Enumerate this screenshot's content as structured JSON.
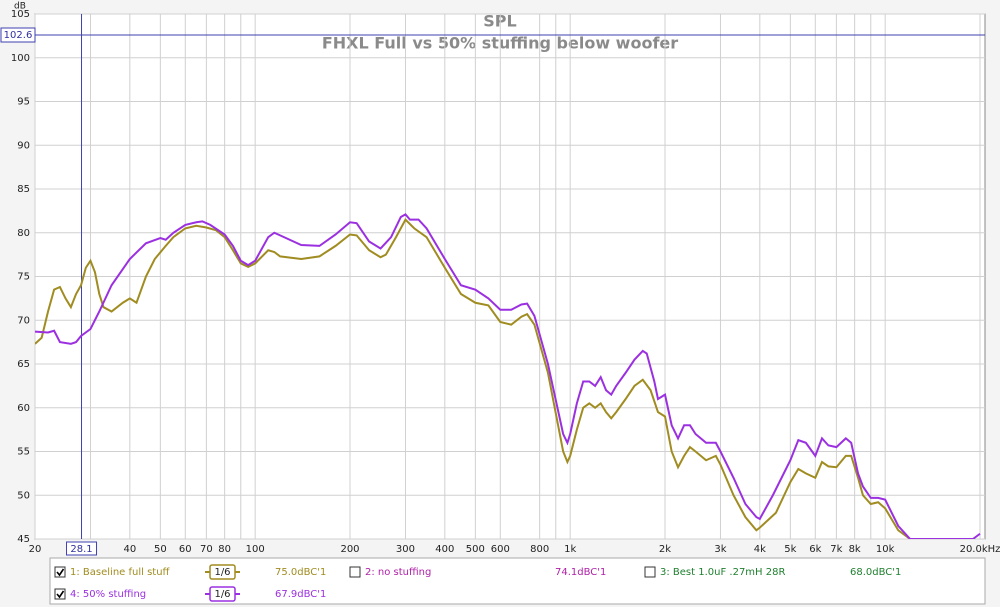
{
  "chart_data": {
    "type": "line",
    "title": "SPL",
    "subtitle": "FHXL Full vs 50% stuffing below woofer",
    "y_label": "dB",
    "xscale": "log",
    "grid": true,
    "xlim": [
      20,
      20000
    ],
    "ylim": [
      45,
      105
    ],
    "xticks": [
      20,
      30,
      40,
      50,
      60,
      70,
      80,
      100,
      200,
      300,
      400,
      500,
      600,
      800,
      {
        "value": 1000,
        "label": "1k"
      },
      {
        "value": 2000,
        "label": "2k"
      },
      {
        "value": 3000,
        "label": "3k"
      },
      {
        "value": 4000,
        "label": "4k"
      },
      {
        "value": 5000,
        "label": "5k"
      },
      {
        "value": 6000,
        "label": "6k"
      },
      {
        "value": 7000,
        "label": "7k"
      },
      {
        "value": 8000,
        "label": "8k"
      },
      {
        "value": 10000,
        "label": "10k"
      },
      {
        "value": 20000,
        "label": "20.0kHz"
      }
    ],
    "xminorticks": [
      90,
      900,
      9000
    ],
    "yticks": [
      45,
      50,
      55,
      60,
      65,
      70,
      75,
      80,
      85,
      90,
      95,
      100,
      105
    ],
    "cursor_x": 28.1,
    "cursor_y": 102.6,
    "series": [
      {
        "name": "1: Baseline full stuff",
        "color": "#a08c20",
        "checked": true,
        "smoothing": "1/6",
        "level": "75.0dBC'1",
        "x": [
          20,
          21,
          22,
          23,
          24,
          25,
          26,
          27,
          28,
          29,
          30,
          31,
          32,
          33,
          35,
          38,
          40,
          42,
          45,
          48,
          52,
          55,
          60,
          65,
          70,
          75,
          80,
          85,
          90,
          95,
          100,
          110,
          115,
          120,
          140,
          160,
          180,
          200,
          210,
          230,
          250,
          260,
          280,
          300,
          320,
          350,
          400,
          450,
          500,
          550,
          600,
          650,
          700,
          730,
          770,
          850,
          950,
          980,
          1000,
          1050,
          1100,
          1150,
          1200,
          1250,
          1300,
          1350,
          1400,
          1500,
          1600,
          1700,
          1800,
          1900,
          2000,
          2100,
          2200,
          2300,
          2400,
          2500,
          2700,
          2900,
          3000,
          3300,
          3600,
          3900,
          4000,
          4500,
          5000,
          5300,
          5600,
          6000,
          6300,
          6600,
          7000,
          7500,
          7800,
          8200,
          8500,
          9000,
          9500,
          10000,
          11000,
          12000
        ],
        "values": [
          67.3,
          68,
          71,
          73.5,
          73.8,
          72.5,
          71.5,
          73,
          74,
          76,
          76.8,
          75.5,
          73,
          71.5,
          71,
          72,
          72.5,
          72,
          75,
          77,
          78.5,
          79.5,
          80.5,
          80.8,
          80.6,
          80.3,
          79.5,
          78,
          76.5,
          76.1,
          76.5,
          78,
          77.8,
          77.3,
          77,
          77.3,
          78.5,
          79.8,
          79.7,
          78,
          77.2,
          77.5,
          79.5,
          81.5,
          80.5,
          79.5,
          76,
          73,
          72,
          71.7,
          69.8,
          69.5,
          70.4,
          70.7,
          69.5,
          64,
          55,
          53.8,
          54.5,
          57.5,
          60,
          60.5,
          60,
          60.5,
          59.5,
          58.8,
          59.5,
          61,
          62.5,
          63.2,
          62,
          59.5,
          59,
          55,
          53.2,
          54.5,
          55.5,
          55,
          54,
          54.5,
          53.5,
          50,
          47.5,
          46,
          46.3,
          48,
          51.5,
          53,
          52.5,
          52,
          53.8,
          53.3,
          53.2,
          54.5,
          54.5,
          52,
          50,
          49,
          49.2,
          48.5,
          46,
          45
        ]
      },
      {
        "name": "2: no stuffing",
        "color": "#b020a8",
        "checked": false,
        "level": "74.1dBC'1"
      },
      {
        "name": "3: Best 1.0uF .27mH 28R",
        "color": "#208030",
        "checked": false,
        "level": "68.0dBC'1"
      },
      {
        "name": "4: 50% stuffing",
        "color": "#9b30e0",
        "checked": true,
        "smoothing": "1/6",
        "level": "67.9dBC'1",
        "x": [
          20,
          22,
          23,
          24,
          26,
          27,
          28,
          30,
          32,
          35,
          40,
          45,
          50,
          52,
          55,
          60,
          65,
          68,
          72,
          80,
          85,
          90,
          95,
          100,
          110,
          115,
          120,
          140,
          160,
          180,
          200,
          210,
          230,
          250,
          270,
          290,
          300,
          310,
          330,
          350,
          400,
          450,
          500,
          550,
          600,
          650,
          700,
          730,
          770,
          850,
          950,
          980,
          1000,
          1050,
          1100,
          1150,
          1200,
          1250,
          1300,
          1350,
          1400,
          1500,
          1600,
          1700,
          1750,
          1850,
          1900,
          2000,
          2100,
          2200,
          2300,
          2400,
          2500,
          2700,
          2900,
          3000,
          3300,
          3600,
          3900,
          4000,
          4400,
          5000,
          5300,
          5600,
          6000,
          6300,
          6600,
          7000,
          7500,
          7800,
          8200,
          8500,
          9000,
          9500,
          10000,
          11000,
          12000,
          19000,
          20000
        ],
        "values": [
          68.7,
          68.6,
          68.8,
          67.5,
          67.3,
          67.5,
          68.2,
          69,
          71,
          74,
          77,
          78.8,
          79.4,
          79.2,
          80,
          80.9,
          81.2,
          81.3,
          80.9,
          79.8,
          78.5,
          76.8,
          76.3,
          76.8,
          79.5,
          80,
          79.7,
          78.6,
          78.5,
          79.8,
          81.2,
          81.1,
          79,
          78.2,
          79.5,
          81.8,
          82.1,
          81.5,
          81.5,
          80.5,
          77,
          74,
          73.5,
          72.5,
          71.2,
          71.2,
          71.8,
          71.9,
          70.5,
          65,
          57,
          56,
          57,
          60.5,
          63,
          63,
          62.5,
          63.5,
          62,
          61.5,
          62.5,
          64,
          65.5,
          66.5,
          66.2,
          63,
          61,
          61.5,
          58,
          56.5,
          58,
          58,
          57,
          56,
          56,
          55,
          52,
          49,
          47.5,
          47.3,
          50,
          54,
          56.3,
          56,
          54.5,
          56.5,
          55.7,
          55.5,
          56.5,
          56,
          52.5,
          51,
          49.7,
          49.7,
          49.5,
          46.5,
          45,
          45,
          45.6
        ]
      }
    ]
  }
}
